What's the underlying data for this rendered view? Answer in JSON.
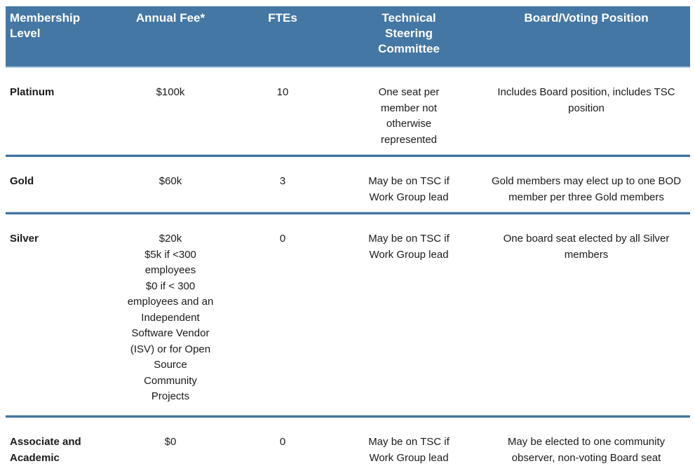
{
  "theme": {
    "header_bg": "#4577A4",
    "header_text": "#FFFFFF",
    "separator": "#44749E",
    "body_text": "#1A1A1A",
    "page_bg": "#FFFFFF"
  },
  "table": {
    "columns": [
      {
        "label": "Membership\nLevel"
      },
      {
        "label": "Annual Fee*"
      },
      {
        "label": "FTEs"
      },
      {
        "label": "Technical\nSteering\nCommittee"
      },
      {
        "label": "Board/Voting Position"
      }
    ],
    "rows": [
      {
        "level": "Platinum",
        "fee": "$100k",
        "ftes": "10",
        "tsc": "One seat per\nmember not\notherwise\nrepresented",
        "board": "Includes Board position, includes TSC\nposition"
      },
      {
        "level": "Gold",
        "fee": "$60k",
        "ftes": "3",
        "tsc": "May be on TSC if\nWork Group lead",
        "board": "Gold members may elect up to one BOD\nmember per three Gold members"
      },
      {
        "level": "Silver",
        "fee": "$20k\n$5k if <300\nemployees\n$0 if < 300\nemployees and an\nIndependent\nSoftware Vendor\n(ISV) or for Open\nSource\nCommunity\nProjects",
        "ftes": "0",
        "tsc": "May be on TSC if\nWork Group lead",
        "board": "One board seat elected by all Silver\nmembers"
      },
      {
        "level": "Associate and\nAcademic",
        "fee": "$0",
        "ftes": "0",
        "tsc": "May be on TSC if\nWork Group lead",
        "board": "May be elected to one community\nobserver, non-voting Board seat"
      }
    ]
  }
}
